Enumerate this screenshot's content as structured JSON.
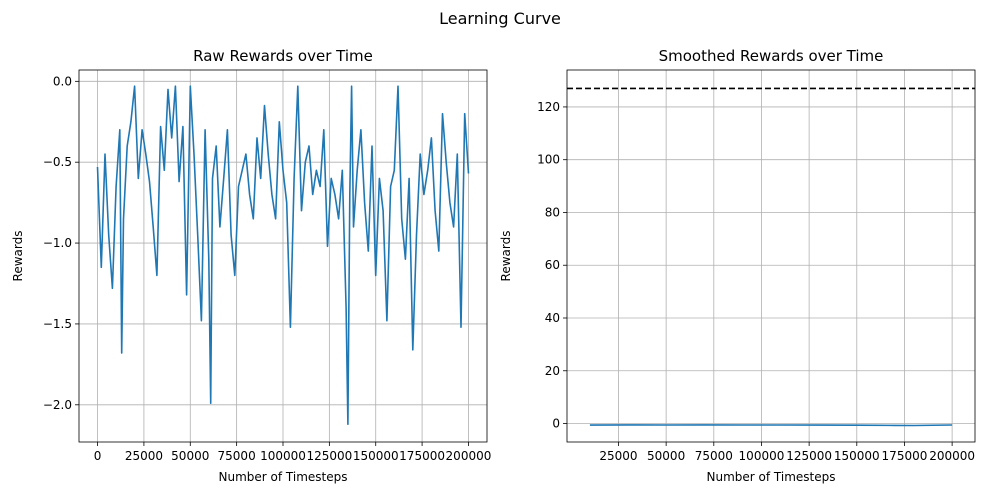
{
  "figure": {
    "suptitle": "Learning Curve"
  },
  "chart_data": [
    {
      "type": "line",
      "title": "Raw Rewards over Time",
      "xlabel": "Number of Timesteps",
      "ylabel": "Rewards",
      "xlim": [
        -10000,
        210000
      ],
      "ylim": [
        -2.23,
        0.07
      ],
      "grid": true,
      "xticks": [
        0,
        25000,
        50000,
        75000,
        100000,
        125000,
        150000,
        175000,
        200000
      ],
      "xtick_labels": [
        "0",
        "25000",
        "50000",
        "75000",
        "100000",
        "125000",
        "150000",
        "175000",
        "200000"
      ],
      "yticks": [
        0.0,
        -0.5,
        -1.0,
        -1.5,
        -2.0
      ],
      "ytick_labels": [
        "0.0",
        "−0.5",
        "−1.0",
        "−1.5",
        "−2.0"
      ],
      "color": "#1f77b4",
      "series": [
        {
          "x": [
            0,
            2000,
            4000,
            6000,
            8000,
            10000,
            12000,
            13000,
            14000,
            16000,
            18000,
            20000,
            22000,
            24000,
            26000,
            28000,
            30000,
            32000,
            34000,
            36000,
            38000,
            40000,
            42000,
            44000,
            46000,
            48000,
            50000,
            52000,
            54000,
            56000,
            58000,
            60000,
            61000,
            62000,
            64000,
            66000,
            68000,
            70000,
            72000,
            74000,
            76000,
            78000,
            80000,
            82000,
            84000,
            86000,
            88000,
            90000,
            92000,
            94000,
            96000,
            98000,
            100000,
            102000,
            104000,
            106000,
            108000,
            110000,
            112000,
            114000,
            116000,
            118000,
            120000,
            122000,
            124000,
            126000,
            128000,
            130000,
            132000,
            134000,
            135000,
            136000,
            137000,
            138000,
            140000,
            142000,
            144000,
            146000,
            148000,
            150000,
            152000,
            154000,
            156000,
            158000,
            160000,
            162000,
            164000,
            166000,
            168000,
            170000,
            172000,
            174000,
            176000,
            178000,
            180000,
            182000,
            184000,
            186000,
            188000,
            190000,
            192000,
            194000,
            196000,
            198000,
            200000
          ],
          "y": [
            -0.53,
            -1.15,
            -0.45,
            -0.95,
            -1.28,
            -0.65,
            -0.3,
            -1.68,
            -0.85,
            -0.4,
            -0.25,
            -0.03,
            -0.6,
            -0.3,
            -0.45,
            -0.62,
            -0.9,
            -1.2,
            -0.28,
            -0.55,
            -0.05,
            -0.35,
            -0.03,
            -0.62,
            -0.28,
            -1.32,
            -0.03,
            -0.45,
            -0.95,
            -1.48,
            -0.3,
            -1.1,
            -1.99,
            -0.6,
            -0.4,
            -0.9,
            -0.6,
            -0.3,
            -0.95,
            -1.2,
            -0.65,
            -0.55,
            -0.45,
            -0.7,
            -0.85,
            -0.35,
            -0.6,
            -0.15,
            -0.45,
            -0.7,
            -0.85,
            -0.25,
            -0.55,
            -0.75,
            -1.52,
            -0.6,
            -0.03,
            -0.8,
            -0.5,
            -0.4,
            -0.7,
            -0.55,
            -0.65,
            -0.3,
            -1.02,
            -0.6,
            -0.7,
            -0.85,
            -0.55,
            -1.4,
            -2.12,
            -0.7,
            -0.03,
            -0.9,
            -0.55,
            -0.3,
            -0.75,
            -1.05,
            -0.4,
            -1.2,
            -0.6,
            -0.8,
            -1.48,
            -0.65,
            -0.55,
            -0.03,
            -0.85,
            -1.1,
            -0.6,
            -1.66,
            -0.95,
            -0.45,
            -0.7,
            -0.55,
            -0.35,
            -0.8,
            -1.05,
            -0.2,
            -0.5,
            -0.75,
            -0.9,
            -0.45,
            -1.52,
            -0.2,
            -0.57
          ]
        }
      ]
    },
    {
      "type": "line",
      "title": "Smoothed Rewards over Time",
      "xlabel": "Number of Timesteps",
      "ylabel": "Rewards",
      "xlim": [
        -2000,
        212000
      ],
      "ylim": [
        -7.0,
        134.0
      ],
      "grid": true,
      "xticks": [
        25000,
        50000,
        75000,
        100000,
        125000,
        150000,
        175000,
        200000
      ],
      "xtick_labels": [
        "25000",
        "50000",
        "75000",
        "100000",
        "125000",
        "150000",
        "175000",
        "200000"
      ],
      "yticks": [
        0,
        20,
        40,
        60,
        80,
        100,
        120
      ],
      "ytick_labels": [
        "0",
        "20",
        "40",
        "60",
        "80",
        "100",
        "120"
      ],
      "color": "#1f77b4",
      "series": [
        {
          "x": [
            10000,
            30000,
            50000,
            70000,
            90000,
            110000,
            130000,
            150000,
            170000,
            180000,
            200000
          ],
          "y": [
            -0.6,
            -0.5,
            -0.55,
            -0.5,
            -0.55,
            -0.55,
            -0.6,
            -0.65,
            -0.7,
            -0.75,
            -0.55
          ]
        }
      ],
      "reference_line": {
        "y": 127,
        "style": "dashed",
        "color": "#000000"
      }
    }
  ]
}
